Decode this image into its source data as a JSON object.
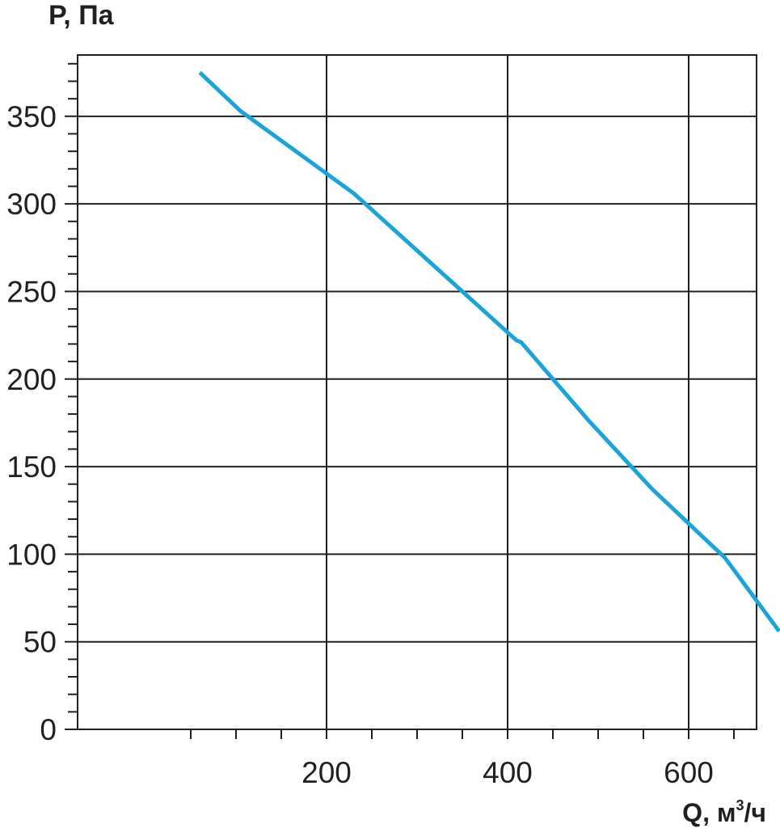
{
  "chart_data": {
    "type": "line",
    "ylabel": "P, Па",
    "xlabel": "Q, м",
    "xlabel_sup": "3",
    "xlabel_tail": "/ч",
    "xlim": [
      -75,
      675
    ],
    "ylim": [
      0,
      385
    ],
    "xticks": [
      200,
      400,
      600
    ],
    "yticks": [
      0,
      50,
      100,
      150,
      200,
      250,
      300,
      350
    ],
    "grid": true,
    "color": "#1ba3dc",
    "series": [
      {
        "x": [
          60,
          105,
          230,
          320,
          410,
          415,
          490,
          560,
          640,
          700
        ],
        "y": [
          375,
          353,
          306,
          264,
          222,
          221,
          176,
          137,
          98,
          56
        ]
      }
    ]
  }
}
